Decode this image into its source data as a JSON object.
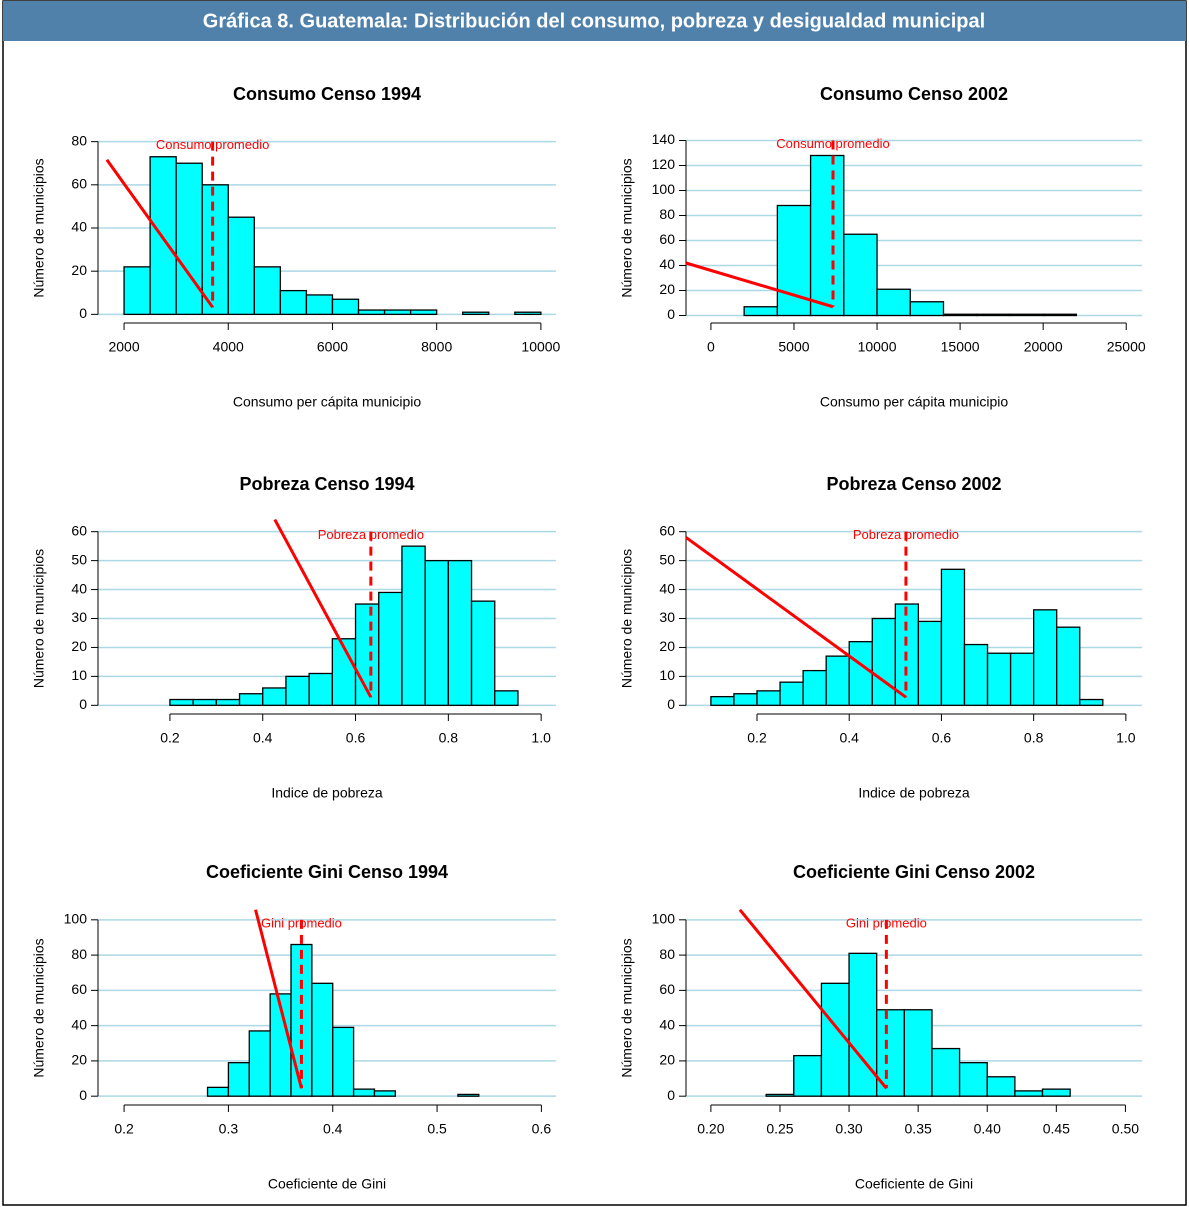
{
  "title": "Gráfica 8. Guatemala: Distribución del consumo, pobreza y desigualdad municipal",
  "chart_data": [
    {
      "type": "histogram",
      "title": "Consumo Censo 1994",
      "x_label": "Consumo per cápita municipio",
      "y_label": "Número de municipios",
      "bins": [
        2000,
        2500,
        3000,
        3500,
        4000,
        4500,
        5000,
        5500,
        6000,
        6500,
        7000,
        7500,
        8000,
        8500,
        9000,
        9500,
        10000
      ],
      "values": [
        22,
        73,
        70,
        60,
        45,
        22,
        11,
        9,
        7,
        2,
        2,
        2,
        0,
        1,
        0,
        1
      ],
      "color": "#00ffff",
      "grid": true,
      "xlim": [
        1500,
        10290
      ],
      "xticks": [
        2000,
        4000,
        6000,
        8000,
        10000
      ],
      "ylim": [
        -4,
        84
      ],
      "yticks": [
        0,
        20,
        40,
        60,
        80
      ],
      "mean": 3700,
      "annotation": "Consumo promedio",
      "line": {
        "x": [
          1670,
          3700
        ],
        "y": [
          71.6,
          3.3
        ]
      }
    },
    {
      "type": "histogram",
      "title": "Consumo Censo 2002",
      "x_label": "Consumo per cápita municipio",
      "y_label": "Número de municipios",
      "bins": [
        2000,
        4000,
        6000,
        8000,
        10000,
        12000,
        14000,
        16000,
        18000,
        20000,
        22000
      ],
      "values": [
        7,
        88,
        128,
        65,
        21,
        11,
        1,
        1,
        1,
        1
      ],
      "color": "#00ffff",
      "grid": true,
      "xlim": [
        -1500,
        25950
      ],
      "xticks": [
        0,
        5000,
        10000,
        15000,
        20000,
        25000
      ],
      "ylim": [
        -6,
        146
      ],
      "yticks": [
        0,
        20,
        40,
        60,
        80,
        100,
        120,
        140
      ],
      "mean": 7350,
      "annotation": "Consumo promedio",
      "line": {
        "x": [
          -1500,
          7350
        ],
        "y": [
          42,
          7
        ]
      }
    },
    {
      "type": "histogram",
      "title": "Pobreza Censo 1994",
      "x_label": "Indice de pobreza",
      "y_label": "Número de municipios",
      "bins": [
        0.2,
        0.25,
        0.3,
        0.35,
        0.4,
        0.45,
        0.5,
        0.55,
        0.6,
        0.65,
        0.7,
        0.75,
        0.8,
        0.85,
        0.9,
        0.95
      ],
      "values": [
        2,
        2,
        2,
        4,
        6,
        10,
        11,
        23,
        35,
        39,
        55,
        50,
        50,
        36,
        5
      ],
      "color": "#00ffff",
      "grid": true,
      "xlim": [
        0.045,
        1.032
      ],
      "xticks": [
        0.2,
        0.4,
        0.6,
        0.8,
        {
          "value": 1,
          "label": "1.0"
        }
      ],
      "ylim": [
        -3,
        63
      ],
      "yticks": [
        0,
        10,
        20,
        30,
        40,
        50,
        60
      ],
      "mean": 0.633,
      "annotation": "Pobreza promedio",
      "line": {
        "x": [
          0.426,
          0.633
        ],
        "y": [
          64.2,
          2.8
        ]
      }
    },
    {
      "type": "histogram",
      "title": "Pobreza Censo 2002",
      "x_label": "Indice de pobreza",
      "y_label": "Número de municipios",
      "bins": [
        0.1,
        0.15,
        0.2,
        0.25,
        0.3,
        0.35,
        0.4,
        0.45,
        0.5,
        0.55,
        0.6,
        0.65,
        0.7,
        0.75,
        0.8,
        0.85,
        0.9,
        0.95
      ],
      "values": [
        3,
        4,
        5,
        8,
        12,
        17,
        22,
        30,
        35,
        29,
        47,
        21,
        18,
        18,
        33,
        27,
        2
      ],
      "color": "#00ffff",
      "grid": true,
      "xlim": [
        0.046,
        1.035
      ],
      "xticks": [
        0.2,
        0.4,
        0.6,
        0.8,
        {
          "value": 1,
          "label": "1.0"
        }
      ],
      "ylim": [
        -3,
        63
      ],
      "yticks": [
        0,
        10,
        20,
        30,
        40,
        50,
        60
      ],
      "mean": 0.523,
      "annotation": "Pobreza promedio",
      "line": {
        "x": [
          0.046,
          0.523
        ],
        "y": [
          58,
          2.8
        ]
      }
    },
    {
      "type": "histogram",
      "title": "Coeficiente Gini Censo 1994",
      "x_label": "Coeficiente de Gini",
      "y_label": "Número de municipios",
      "bins": [
        0.28,
        0.3,
        0.32,
        0.34,
        0.36,
        0.38,
        0.4,
        0.42,
        0.44,
        0.46,
        0.48,
        0.5,
        0.52,
        0.54
      ],
      "values": [
        5,
        19,
        37,
        58,
        86,
        64,
        39,
        4,
        3,
        0,
        0,
        0,
        1
      ],
      "color": "#00ffff",
      "grid": true,
      "xlim": [
        0.175,
        0.614
      ],
      "xticks": [
        0.2,
        0.3,
        0.4,
        0.5,
        0.6
      ],
      "ylim": [
        -5,
        105
      ],
      "yticks": [
        0,
        20,
        40,
        60,
        80,
        100
      ],
      "mean": 0.37,
      "annotation": "Gini promedio",
      "line": {
        "x": [
          0.326,
          0.37
        ],
        "y": [
          105.7,
          4.5
        ]
      }
    },
    {
      "type": "histogram",
      "title": "Coeficiente Gini Censo 2002",
      "x_label": "Coeficiente de Gini",
      "y_label": "Número de municipios",
      "bins": [
        0.24,
        0.26,
        0.28,
        0.3,
        0.32,
        0.34,
        0.36,
        0.38,
        0.4,
        0.42,
        0.44,
        0.46
      ],
      "values": [
        1,
        23,
        64,
        81,
        49,
        49,
        27,
        19,
        11,
        3,
        4
      ],
      "color": "#00ffff",
      "grid": true,
      "xlim": [
        0.182,
        0.512
      ],
      "xticks": [
        {
          "value": 0.2,
          "label": "0.20"
        },
        0.25,
        {
          "value": 0.3,
          "label": "0.30"
        },
        0.35,
        {
          "value": 0.4,
          "label": "0.40"
        },
        0.45,
        {
          "value": 0.5,
          "label": "0.50"
        }
      ],
      "ylim": [
        -5,
        105
      ],
      "yticks": [
        0,
        20,
        40,
        60,
        80,
        100
      ],
      "mean": 0.327,
      "annotation": "Gini promedio",
      "line": {
        "x": [
          0.221,
          0.327
        ],
        "y": [
          105.7,
          4.5
        ]
      }
    }
  ]
}
